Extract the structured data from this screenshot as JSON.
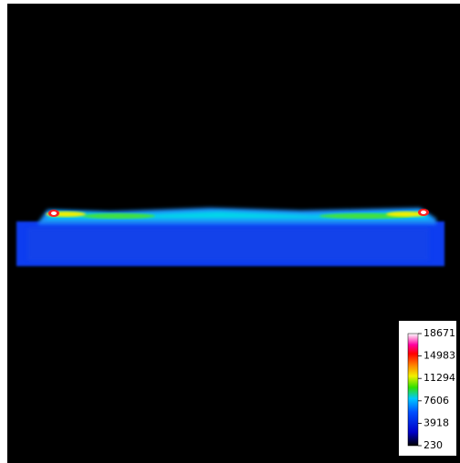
{
  "chart_data": {
    "type": "heatmap",
    "colorbar_lim": [
      230,
      18671
    ],
    "colorbar_ticks": [
      18671,
      14983,
      11294,
      7606,
      3918,
      230
    ]
  }
}
